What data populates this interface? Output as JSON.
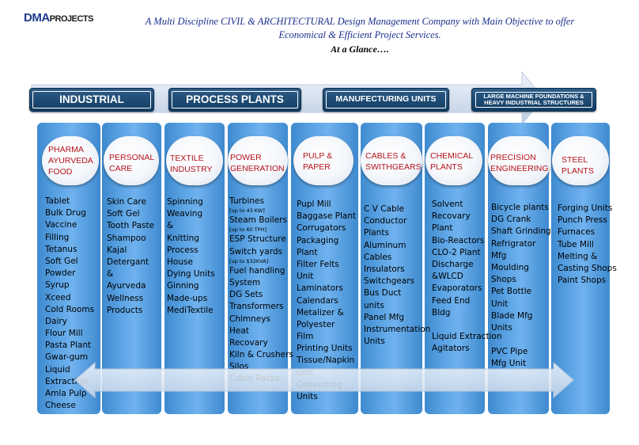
{
  "logo": {
    "dma": "DMA",
    "projects": "PROJECTS"
  },
  "tagline": {
    "line1": "A Multi Discipline CIVIL & ARCHITECTURAL Design Management Company with Main Objective to offer",
    "line2": "Economical & Efficient Project Services.",
    "line3": "At a Glance…."
  },
  "categories": [
    {
      "label": "INDUSTRIAL"
    },
    {
      "label": "PROCESS PLANTS"
    },
    {
      "label": "MANUFECTURING UNITS"
    },
    {
      "label": "LARGE MACHINE FOUNDATIONS & HEAVY INDUSTRIAL STRUCTURES"
    }
  ],
  "colors": {
    "bar": "#1f4e79",
    "column": "#4f9ad9",
    "title": "#b5121b"
  },
  "columns": [
    {
      "title": [
        "PHARMA",
        "AYURVEDA",
        "FOOD"
      ],
      "items": [
        "Tablet",
        "Bulk Drug",
        "Vaccine",
        "Filling",
        "Tetanus",
        "Soft Gel",
        "Powder",
        "Syrup",
        "Xceed",
        "Cold Rooms",
        "Dairy",
        "Flour Mill",
        "Pasta Plant",
        "Gwar-gum",
        "Liquid",
        "Extraction",
        "Amla Pulp",
        "Cheese"
      ]
    },
    {
      "title": [
        "PERSONAL",
        "CARE"
      ],
      "items": [
        "Skin Care",
        "Soft Gel",
        "Tooth Paste",
        "Shampoo",
        "Kajal",
        "Detergant",
        "&",
        "Ayurveda",
        "Wellness",
        "Products"
      ]
    },
    {
      "title": [
        "TEXTILE",
        "INDUSTRY"
      ],
      "items": [
        "Spinning",
        "Weaving",
        "&",
        "Knitting",
        "Process",
        "House",
        "Dying Units",
        "Ginning",
        "Made-ups",
        "MediTextile"
      ]
    },
    {
      "title": [
        "POWER",
        "GENERATION"
      ],
      "items": [
        {
          "t": "Turbines"
        },
        {
          "t": "[up to 43 KW]",
          "s": 1
        },
        {
          "t": "Steam Boilers"
        },
        {
          "t": "[up to 60 TPH]",
          "s": 1
        },
        {
          "t": "ESP Structure"
        },
        {
          "t": "Switch yards"
        },
        {
          "t": "[up to $32KVA]",
          "s": 1
        },
        {
          "t": "Fuel handling"
        },
        {
          "t": "System"
        },
        {
          "t": "DG Sets"
        },
        {
          "t": "Transformers"
        },
        {
          "t": "Chimneys"
        },
        {
          "t": "Heat"
        },
        {
          "t": "Recovary"
        },
        {
          "t": "Kiln & Crushers"
        },
        {
          "t": "Silos"
        },
        {
          "t": "Cable Racks"
        }
      ]
    },
    {
      "title": [
        "PULP &",
        "PAPER"
      ],
      "items": [
        "Pupl  Mill",
        "Baggase Plant",
        "Corrugators",
        "Packaging",
        "Plant",
        "Filter Felts",
        "Unit",
        "Laminators",
        "Calendars",
        "Metalizer &",
        "Polyester",
        "Film",
        "Printing Units",
        "Tissue/Napkin",
        "Unit",
        "Converting",
        "Units"
      ]
    },
    {
      "title": [
        "CABLES &",
        "SWITHGEARS"
      ],
      "items": [
        "C V Cable",
        "Conductor",
        "Plants",
        "Aluminum",
        "Cables",
        "Insulators",
        "Switchgears",
        "Bus Duct",
        "units",
        "Panel Mfg",
        "Instrumentation",
        "Units"
      ]
    },
    {
      "title": [
        "CHEMICAL",
        "PLANTS"
      ],
      "items": [
        "Solvent",
        "Recovary",
        "Plant",
        "Bio-Reactors",
        "CLO-2 Plant",
        "Discharge",
        "&WLCD",
        "Evaporators",
        "Feed End",
        "Bldg",
        "",
        "Liquid Extraction",
        "Agitators"
      ]
    },
    {
      "title": [
        "PRECISION",
        "ENGINEERING"
      ],
      "items": [
        "Bicycle plants",
        "DG Crank",
        "Shaft Grinding",
        "Refrigrator",
        "Mfg",
        "Moulding",
        "Shops",
        "Pet Bottle",
        "Unit",
        "Blade Mfg",
        "Units",
        "",
        "PVC Pipe",
        "Mfg Unit"
      ]
    },
    {
      "title": [
        "STEEL",
        "PLANTS"
      ],
      "items": [
        "Forging Units",
        "Punch Press",
        "Furnaces",
        "Tube Mill",
        "Melting &",
        "Casting Shops",
        "Paint Shops"
      ]
    }
  ]
}
